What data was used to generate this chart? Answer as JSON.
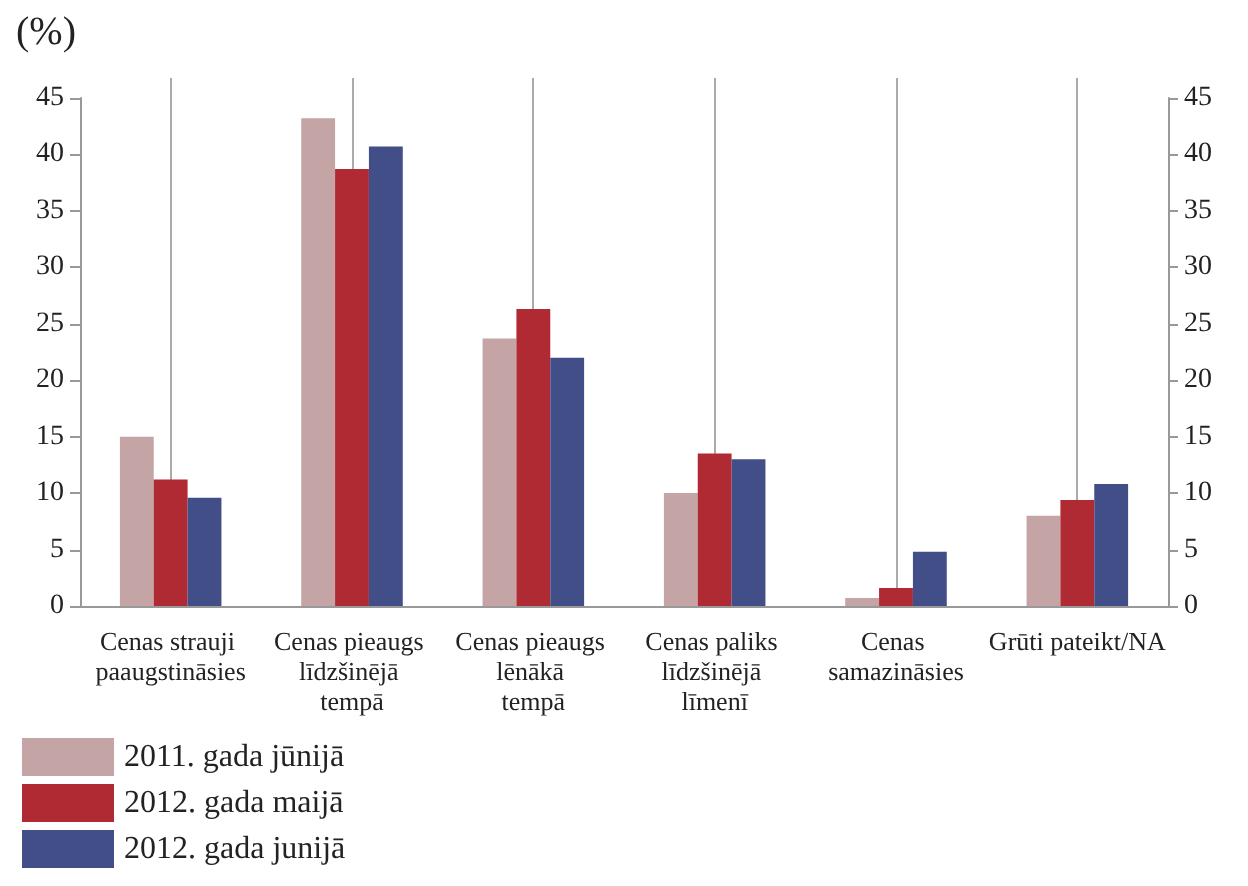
{
  "chart_data": {
    "type": "bar",
    "ylabel": "(%)",
    "categories": [
      "Cenas strauji paaugstināsies",
      "Cenas pieaugs līdzšinējā tempā",
      "Cenas pieaugs lēnākā tempā",
      "Cenas paliks līdzšinējā līmenī",
      "Cenas samazināsies",
      "Grūti pateikt/NA"
    ],
    "series": [
      {
        "name": "2011. gada jūnijā",
        "color": "#c4a4a4",
        "values": [
          15.0,
          43.2,
          23.7,
          10.0,
          0.7,
          8.0
        ]
      },
      {
        "name": "2012. gada maijā",
        "color": "#b02a33",
        "values": [
          11.2,
          38.7,
          26.3,
          13.5,
          1.6,
          9.4
        ]
      },
      {
        "name": "2012. gada junijā",
        "color": "#414e87",
        "values": [
          9.6,
          40.7,
          22.0,
          13.0,
          4.8,
          10.8
        ]
      }
    ],
    "ylim": [
      0,
      45
    ],
    "yticks": [
      0,
      5,
      10,
      15,
      20,
      25,
      30,
      35,
      40,
      45
    ],
    "y2lim": [
      0,
      45
    ],
    "y2ticks": [
      0,
      5,
      10,
      15,
      20,
      25,
      30,
      35,
      40,
      45
    ],
    "grid": "x",
    "legend": "bottom left"
  }
}
